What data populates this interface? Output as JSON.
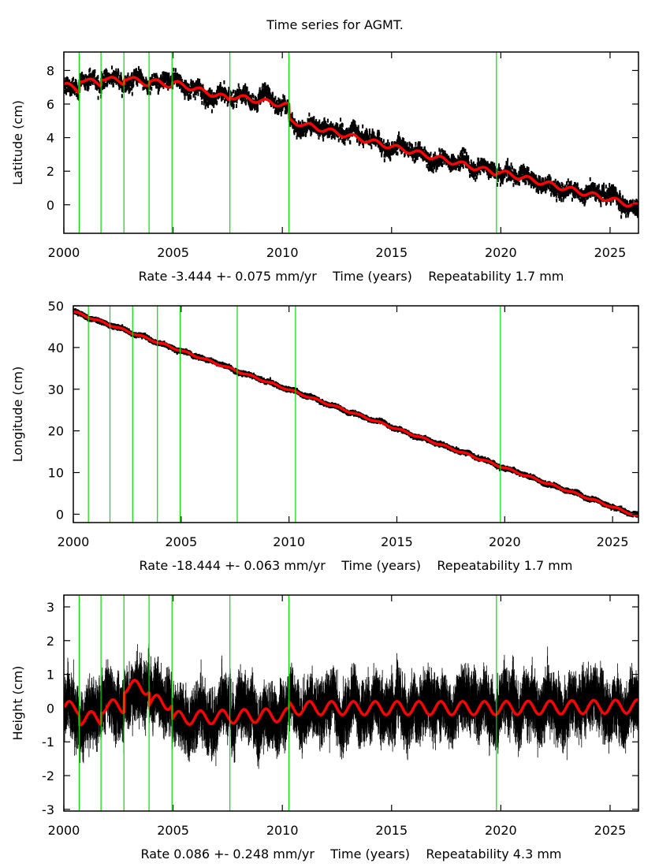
{
  "title": "Time series for AGMT.",
  "colors": {
    "data": "#000000",
    "model": "#ff0000",
    "breaks": "#00dd00",
    "frame": "#000000"
  },
  "chart_data": [
    {
      "type": "scatter",
      "name": "latitude",
      "ylabel": "Latitude (cm)",
      "xlabel": "Rate -3.444 +- 0.075 mm/yr    Time (years)    Repeatability 1.7 mm",
      "xlim": [
        2000,
        2026.3
      ],
      "ylim": [
        -1.7,
        9.1
      ],
      "xticks": [
        "2000",
        "2005",
        "2010",
        "2015",
        "2020",
        "2025"
      ],
      "yticks": [
        "0",
        "2",
        "4",
        "6",
        "8"
      ],
      "breaks": [
        2000.7,
        2001.7,
        2002.75,
        2003.9,
        2004.95,
        2007.6,
        2010.3,
        2019.8
      ],
      "rate_mm_yr": -3.444,
      "rate_err": 0.075,
      "repeatability_mm": 1.7,
      "segments": [
        {
          "x0": 2000.0,
          "x1": 2000.7,
          "y0": 7.2,
          "y1": 6.8
        },
        {
          "x0": 2000.7,
          "x1": 2001.7,
          "y0": 7.5,
          "y1": 7.2
        },
        {
          "x0": 2001.7,
          "x1": 2002.75,
          "y0": 7.6,
          "y1": 7.3
        },
        {
          "x0": 2002.75,
          "x1": 2003.9,
          "y0": 7.6,
          "y1": 7.2
        },
        {
          "x0": 2003.9,
          "x1": 2004.95,
          "y0": 7.4,
          "y1": 7.1
        },
        {
          "x0": 2004.95,
          "x1": 2007.6,
          "y0": 7.3,
          "y1": 6.3
        },
        {
          "x0": 2007.6,
          "x1": 2010.3,
          "y0": 6.5,
          "y1": 5.9
        },
        {
          "x0": 2010.3,
          "x1": 2019.8,
          "y0": 5.0,
          "y1": 1.9
        },
        {
          "x0": 2019.8,
          "x1": 2026.3,
          "y0": 2.0,
          "y1": -0.1
        }
      ],
      "noise_cm": 0.35,
      "seasonal_amp_cm": 0.15
    },
    {
      "type": "scatter",
      "name": "longitude",
      "ylabel": "Longitude (cm)",
      "xlabel": "Rate -18.444 +- 0.063 mm/yr    Time (years)    Repeatability 1.7 mm",
      "xlim": [
        2000,
        2026.2
      ],
      "ylim": [
        -2,
        50
      ],
      "xticks": [
        "2000",
        "2005",
        "2010",
        "2015",
        "2020",
        "2025"
      ],
      "yticks": [
        "0",
        "10",
        "20",
        "30",
        "40",
        "50"
      ],
      "breaks": [
        2000.7,
        2001.7,
        2002.75,
        2003.9,
        2004.95,
        2007.6,
        2010.3,
        2019.8
      ],
      "rate_mm_yr": -18.444,
      "rate_err": 0.063,
      "repeatability_mm": 1.7,
      "segments": [
        {
          "x0": 2000.0,
          "x1": 2026.2,
          "y0": 48.6,
          "y1": -0.5
        }
      ],
      "noise_cm": 0.25,
      "seasonal_amp_cm": 0.2
    },
    {
      "type": "scatter",
      "name": "height",
      "ylabel": "Height (cm)",
      "xlabel": "Rate 0.086 +- 0.248 mm/yr    Time (years)    Repeatability 4.3 mm",
      "xlim": [
        2000,
        2026.3
      ],
      "ylim": [
        -3.05,
        3.35
      ],
      "xticks": [
        "2000",
        "2005",
        "2010",
        "2015",
        "2020",
        "2025"
      ],
      "yticks": [
        "-3",
        "-2",
        "-1",
        "0",
        "1",
        "2",
        "3"
      ],
      "breaks": [
        2000.7,
        2001.7,
        2002.75,
        2003.9,
        2004.95,
        2007.6,
        2010.3,
        2019.8
      ],
      "rate_mm_yr": 0.086,
      "rate_err": 0.248,
      "repeatability_mm": 4.3,
      "segments": [
        {
          "x0": 2000.0,
          "x1": 2000.7,
          "y0": 0.0,
          "y1": 0.0
        },
        {
          "x0": 2000.7,
          "x1": 2001.7,
          "y0": -0.3,
          "y1": -0.3
        },
        {
          "x0": 2001.7,
          "x1": 2002.75,
          "y0": 0.05,
          "y1": 0.05
        },
        {
          "x0": 2002.75,
          "x1": 2003.9,
          "y0": 0.65,
          "y1": 0.6
        },
        {
          "x0": 2003.9,
          "x1": 2004.95,
          "y0": 0.2,
          "y1": 0.15
        },
        {
          "x0": 2004.95,
          "x1": 2007.6,
          "y0": -0.3,
          "y1": -0.25
        },
        {
          "x0": 2007.6,
          "x1": 2010.3,
          "y0": -0.25,
          "y1": -0.2
        },
        {
          "x0": 2010.3,
          "x1": 2019.8,
          "y0": 0.0,
          "y1": 0.0
        },
        {
          "x0": 2019.8,
          "x1": 2026.3,
          "y0": 0.0,
          "y1": 0.05
        }
      ],
      "noise_cm": 0.45,
      "seasonal_amp_cm": 0.2
    }
  ]
}
